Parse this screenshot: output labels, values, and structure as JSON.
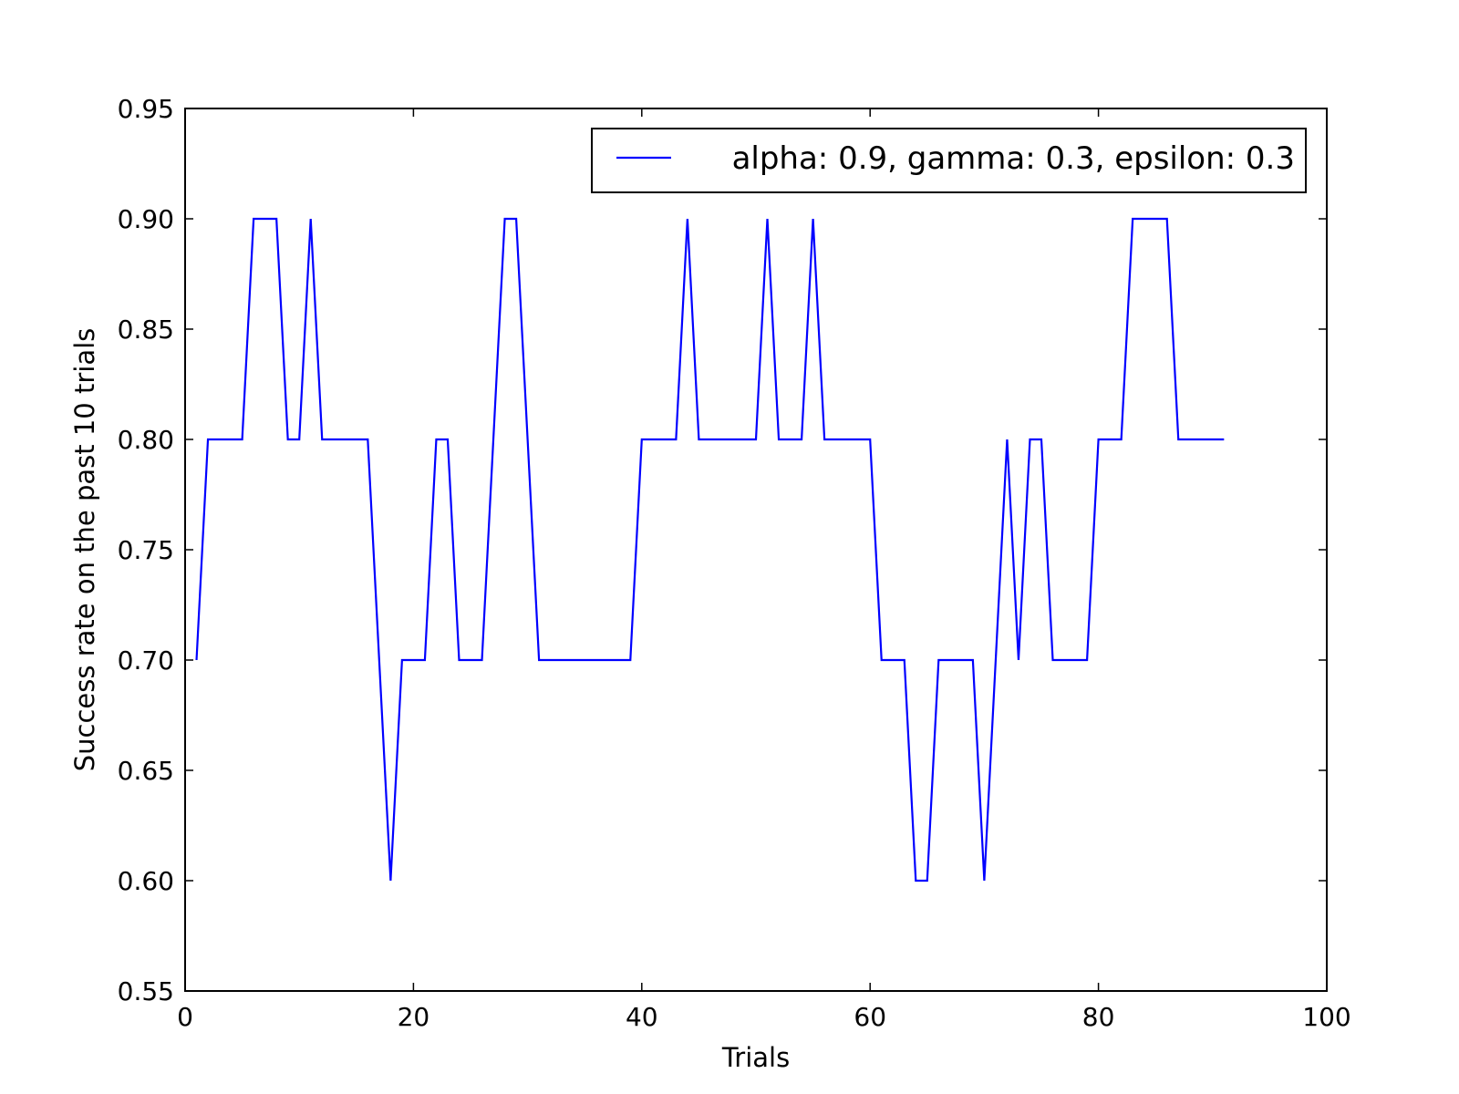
{
  "chart_data": {
    "type": "line",
    "xlabel": "Trials",
    "ylabel": "Success rate on the past 10 trials",
    "xlim": [
      0,
      100
    ],
    "ylim": [
      0.55,
      0.95
    ],
    "xticks": [
      0,
      20,
      40,
      60,
      80,
      100
    ],
    "xtick_labels": [
      "0",
      "20",
      "40",
      "60",
      "80",
      "100"
    ],
    "yticks": [
      0.55,
      0.6,
      0.65,
      0.7,
      0.75,
      0.8,
      0.85,
      0.9,
      0.95
    ],
    "ytick_labels": [
      "0.55",
      "0.60",
      "0.65",
      "0.70",
      "0.75",
      "0.80",
      "0.85",
      "0.90",
      "0.95"
    ],
    "grid": false,
    "legend_position": "top-right",
    "series": [
      {
        "name": "alpha: 0.9, gamma: 0.3, epsilon: 0.3",
        "color": "#0000ff",
        "x": [
          1,
          2,
          3,
          4,
          5,
          6,
          7,
          8,
          9,
          10,
          11,
          12,
          13,
          14,
          15,
          16,
          17,
          18,
          19,
          20,
          21,
          22,
          23,
          24,
          25,
          26,
          27,
          28,
          29,
          30,
          31,
          32,
          33,
          34,
          35,
          36,
          37,
          38,
          39,
          40,
          41,
          42,
          43,
          44,
          45,
          46,
          47,
          48,
          49,
          50,
          51,
          52,
          53,
          54,
          55,
          56,
          57,
          58,
          59,
          60,
          61,
          62,
          63,
          64,
          65,
          66,
          67,
          68,
          69,
          70,
          71,
          72,
          73,
          74,
          75,
          76,
          77,
          78,
          79,
          80,
          81,
          82,
          83,
          84,
          85,
          86,
          87,
          88,
          89,
          90,
          91
        ],
        "y": [
          0.7,
          0.8,
          0.8,
          0.8,
          0.8,
          0.9,
          0.9,
          0.9,
          0.8,
          0.8,
          0.9,
          0.8,
          0.8,
          0.8,
          0.8,
          0.8,
          0.7,
          0.6,
          0.7,
          0.7,
          0.7,
          0.8,
          0.8,
          0.7,
          0.7,
          0.7,
          0.8,
          0.9,
          0.9,
          0.8,
          0.7,
          0.7,
          0.7,
          0.7,
          0.7,
          0.7,
          0.7,
          0.7,
          0.7,
          0.8,
          0.8,
          0.8,
          0.8,
          0.9,
          0.8,
          0.8,
          0.8,
          0.8,
          0.8,
          0.8,
          0.9,
          0.8,
          0.8,
          0.8,
          0.9,
          0.8,
          0.8,
          0.8,
          0.8,
          0.8,
          0.7,
          0.7,
          0.7,
          0.6,
          0.6,
          0.7,
          0.7,
          0.7,
          0.7,
          0.6,
          0.7,
          0.8,
          0.7,
          0.8,
          0.8,
          0.7,
          0.7,
          0.7,
          0.7,
          0.8,
          0.8,
          0.8,
          0.9,
          0.9,
          0.9,
          0.9,
          0.8,
          0.8,
          0.8,
          0.8,
          0.8
        ]
      }
    ]
  }
}
